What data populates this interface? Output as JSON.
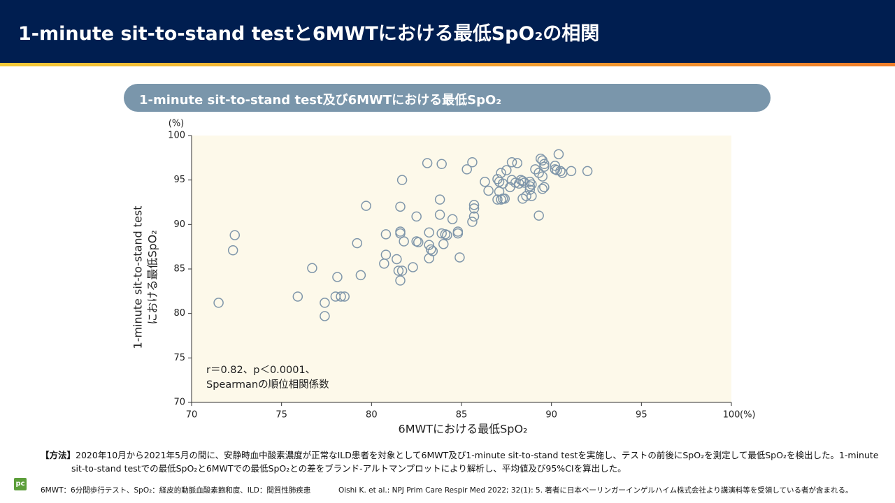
{
  "header": {
    "title": "1-minute sit-to-stand testと6MWTにおける最低SpO₂の相関"
  },
  "panel": {
    "title": "1-minute sit-to-stand test及び6MWTにおける最低SpO₂"
  },
  "chart_data": {
    "type": "scatter",
    "x_label": "6MWTにおける最低SpO₂",
    "y_label": [
      "1-minute sit-to-stand test",
      "における最低SpO₂"
    ],
    "x_unit": "(%)",
    "y_unit": "(%)",
    "annotation": [
      "r＝0.82、p＜0.0001、",
      "Spearmanの順位相関係数"
    ],
    "xlim": [
      70,
      100
    ],
    "ylim": [
      70,
      100
    ],
    "xticks": [
      70,
      75,
      80,
      85,
      90,
      95,
      100
    ],
    "yticks": [
      70,
      75,
      80,
      85,
      90,
      95,
      100
    ],
    "color": "#7f96aa",
    "background": "#fdf9ea",
    "x": [
      71.5,
      72.4,
      72.3,
      75.9,
      76.7,
      77.4,
      77.4,
      78.1,
      78.0,
      78.3,
      78.5,
      79.2,
      79.4,
      79.7,
      80.7,
      80.8,
      80.8,
      81.4,
      81.5,
      81.7,
      81.6,
      81.6,
      81.6,
      81.6,
      81.7,
      81.8,
      82.3,
      82.5,
      82.5,
      82.6,
      83.1,
      83.2,
      83.2,
      83.3,
      83.2,
      83.4,
      83.8,
      83.8,
      83.9,
      83.9,
      84.1,
      84.2,
      84.0,
      84.5,
      84.8,
      84.8,
      84.9,
      85.3,
      85.6,
      85.6,
      85.7,
      85.7,
      85.7,
      86.3,
      86.5,
      87.0,
      87.0,
      87.1,
      87.2,
      87.3,
      87.1,
      87.2,
      87.3,
      87.4,
      87.5,
      87.7,
      87.8,
      87.8,
      88.0,
      88.1,
      88.2,
      88.3,
      88.4,
      88.4,
      88.5,
      88.6,
      88.8,
      88.8,
      88.8,
      88.9,
      88.9,
      89.1,
      89.3,
      89.3,
      89.4,
      89.5,
      89.5,
      89.5,
      89.6,
      89.6,
      89.6,
      90.2,
      90.2,
      90.3,
      90.4,
      90.5,
      90.6,
      91.1,
      92.0
    ],
    "values": [
      81.2,
      88.8,
      87.1,
      81.9,
      85.1,
      81.2,
      79.7,
      84.1,
      81.9,
      81.9,
      81.9,
      87.9,
      84.3,
      92.1,
      85.6,
      88.9,
      86.6,
      86.1,
      84.8,
      84.8,
      83.7,
      89.2,
      89.0,
      92.0,
      95.0,
      88.1,
      85.2,
      90.9,
      88.1,
      88.0,
      96.9,
      89.1,
      87.7,
      87.2,
      86.2,
      87.0,
      91.1,
      92.8,
      96.8,
      89.0,
      88.9,
      88.8,
      87.8,
      90.6,
      89.2,
      89.0,
      86.3,
      96.2,
      97.0,
      90.3,
      90.9,
      92.2,
      91.8,
      94.8,
      93.8,
      92.8,
      95.1,
      94.8,
      95.8,
      94.6,
      93.7,
      92.8,
      92.9,
      92.9,
      96.1,
      94.2,
      97.0,
      95.0,
      94.7,
      96.9,
      94.6,
      95.0,
      94.9,
      92.9,
      94.7,
      93.2,
      94.3,
      93.9,
      94.8,
      93.2,
      94.5,
      96.2,
      95.8,
      91.0,
      97.4,
      97.2,
      95.4,
      94.0,
      94.2,
      96.8,
      96.5,
      96.6,
      96.2,
      96.1,
      97.9,
      96.0,
      95.8,
      96.0,
      96.0
    ]
  },
  "method": {
    "label": "【方法】",
    "text": "2020年10月から2021年5月の間に、安静時血中酸素濃度が正常なILD患者を対象として6MWT及び1-minute sit-to-stand testを実施し、テストの前後にSpO₂を測定して最低SpO₂を検出した。1-minute sit-to-stand testでの最低SpO₂と6MWTでの最低SpO₂との差をブランド-アルトマンプロットにより解析し、平均値及び95%CIを算出した。"
  },
  "footer": {
    "logo": "pc",
    "abbreviations": "6MWT：6分間歩行テスト、SpO₂：経皮的動脈血酸素飽和度、ILD：間質性肺疾患",
    "citation": "Oishi K. et al.: NPJ Prim Care Respir Med 2022; 32(1): 5. 著者に日本ベーリンガーインゲルハイム株式会社より講演料等を受領している者が含まれる。"
  }
}
